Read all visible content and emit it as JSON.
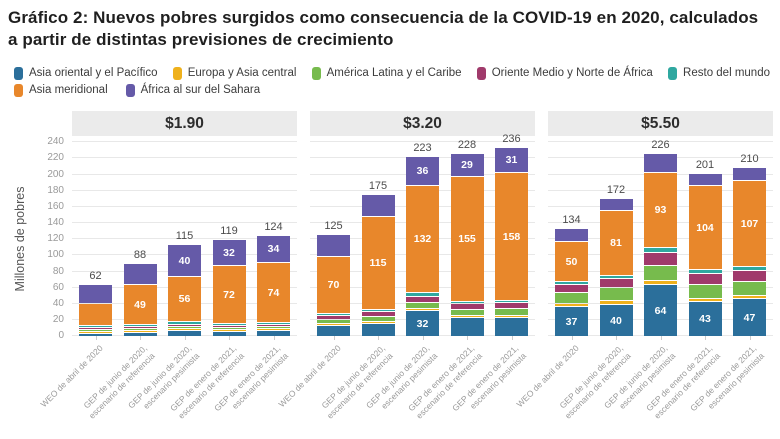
{
  "title": "Gráfico 2: Nuevos pobres surgidos como consecuencia de la COVID-19 en 2020, calculados a partir de distintas previsiones de crecimiento",
  "y_axis": {
    "title": "Millones de pobres",
    "min": 0,
    "max": 240,
    "step": 20
  },
  "legend": {
    "rows": [
      [
        {
          "key": "asia_oriental_pacifico",
          "label": "Asia oriental y el Pacífico",
          "color": "#2b6f9b"
        },
        {
          "key": "europa_asia_central",
          "label": "Europa y Asia central",
          "color": "#efb11c"
        },
        {
          "key": "america_latina_caribe",
          "label": "América Latina y el Caribe",
          "color": "#77bb4d"
        },
        {
          "key": "oriente_medio_norte_africa",
          "label": "Oriente Medio y Norte de África",
          "color": "#a03a6b"
        },
        {
          "key": "resto_mundo",
          "label": "Resto del mundo",
          "color": "#2fa8a0"
        }
      ],
      [
        {
          "key": "asia_meridional",
          "label": "Asia meridional",
          "color": "#e8872b"
        },
        {
          "key": "africa_sur_sahara",
          "label": "África al sur del Sahara",
          "color": "#655aa8"
        }
      ]
    ]
  },
  "chart_data": {
    "type": "bar",
    "stacked": true,
    "ylabel": "Millones de pobres",
    "ylim": [
      0,
      240
    ],
    "grid": true,
    "series_keys": [
      "asia_oriental_pacifico",
      "europa_asia_central",
      "america_latina_caribe",
      "oriente_medio_norte_africa",
      "resto_mundo",
      "asia_meridional",
      "africa_sur_sahara"
    ],
    "series_colors": {
      "asia_oriental_pacifico": "#2b6f9b",
      "europa_asia_central": "#efb11c",
      "america_latina_caribe": "#77bb4d",
      "oriente_medio_norte_africa": "#a03a6b",
      "resto_mundo": "#2fa8a0",
      "asia_meridional": "#e8872b",
      "africa_sur_sahara": "#655aa8"
    },
    "categories": [
      {
        "line1": "WEO de abril de 2020",
        "line2": ""
      },
      {
        "line1": "GEP de junio de 2020,",
        "line2": "escenario de referencia"
      },
      {
        "line1": "GEP de junio de 2020,",
        "line2": "escenario pesimista"
      },
      {
        "line1": "GEP de enero de 2021,",
        "line2": "escenario de referencia"
      },
      {
        "line1": "GEP de enero de 2021,",
        "line2": "escenario pesimista"
      }
    ],
    "panels": [
      {
        "header": "$1.90",
        "bars": [
          {
            "total": 62,
            "values": [
              4,
              1,
              2,
              2,
              2,
              27,
              24
            ],
            "labeled": []
          },
          {
            "total": 88,
            "values": [
              5,
              1,
              2,
              2,
              3,
              49,
              26
            ],
            "labeled": [
              5
            ]
          },
          {
            "total": 115,
            "values": [
              8,
              1,
              3,
              3,
              4,
              56,
              40
            ],
            "labeled": [
              5,
              6
            ]
          },
          {
            "total": 119,
            "values": [
              6,
              1,
              2,
              3,
              3,
              72,
              32
            ],
            "labeled": [
              5,
              6
            ]
          },
          {
            "total": 124,
            "values": [
              7,
              1,
              2,
              3,
              3,
              74,
              34
            ],
            "labeled": [
              5,
              6
            ]
          }
        ]
      },
      {
        "header": "$3.20",
        "bars": [
          {
            "total": 125,
            "values": [
              13,
              2,
              5,
              5,
              3,
              70,
              27
            ],
            "labeled": [
              5
            ]
          },
          {
            "total": 175,
            "values": [
              16,
              2,
              6,
              6,
              3,
              115,
              27
            ],
            "labeled": [
              5
            ]
          },
          {
            "total": 223,
            "values": [
              32,
              3,
              8,
              7,
              5,
              132,
              36
            ],
            "labeled": [
              0,
              5,
              6
            ]
          },
          {
            "total": 228,
            "values": [
              23,
              3,
              8,
              7,
              3,
              155,
              29
            ],
            "labeled": [
              5,
              6
            ]
          },
          {
            "total": 236,
            "values": [
              24,
              3,
              9,
              8,
              3,
              158,
              31
            ],
            "labeled": [
              5,
              6
            ]
          }
        ]
      },
      {
        "header": "$5.50",
        "bars": [
          {
            "total": 134,
            "values": [
              37,
              4,
              13,
              10,
              4,
              50,
              16
            ],
            "labeled": [
              0,
              5
            ]
          },
          {
            "total": 172,
            "values": [
              40,
              5,
              16,
              11,
              4,
              81,
              15
            ],
            "labeled": [
              0,
              5
            ]
          },
          {
            "total": 226,
            "values": [
              64,
              5,
              19,
              16,
              6,
              93,
              23
            ],
            "labeled": [
              0,
              5
            ]
          },
          {
            "total": 201,
            "values": [
              43,
              4,
              17,
              13,
              5,
              104,
              15
            ],
            "labeled": [
              0,
              5
            ]
          },
          {
            "total": 210,
            "values": [
              47,
              4,
              17,
              14,
              5,
              107,
              16
            ],
            "labeled": [
              0,
              5
            ]
          }
        ]
      }
    ]
  }
}
